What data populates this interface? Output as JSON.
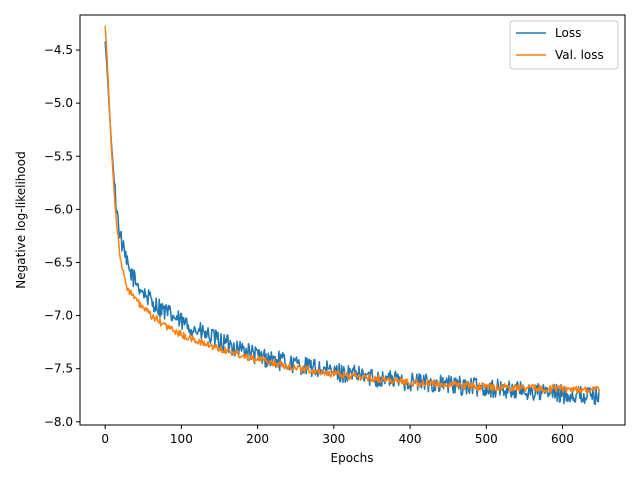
{
  "chart_data": {
    "type": "line",
    "title": "",
    "xlabel": "Epochs",
    "ylabel": "Negative log-likelihood",
    "xlim": [
      -33,
      682
    ],
    "ylim": [
      -8.03,
      -4.17
    ],
    "xticks": [
      0,
      100,
      200,
      300,
      400,
      500,
      600
    ],
    "xtick_labels": [
      "0",
      "100",
      "200",
      "300",
      "400",
      "500",
      "600"
    ],
    "yticks": [
      -8.0,
      -7.5,
      -7.0,
      -6.5,
      -6.0,
      -5.5,
      -5.0,
      -4.5
    ],
    "ytick_labels": [
      "−8.0",
      "−7.5",
      "−7.0",
      "−6.5",
      "−6.0",
      "−5.5",
      "−5.0",
      "−4.5"
    ],
    "grid": false,
    "legend": {
      "placement": "top-right"
    },
    "series": [
      {
        "name": "Loss",
        "color": "#1f77b4",
        "noise": 0.09,
        "x": [
          0,
          2,
          5,
          8,
          12,
          16,
          20,
          25,
          30,
          40,
          50,
          60,
          80,
          100,
          120,
          150,
          180,
          200,
          250,
          300,
          350,
          400,
          450,
          500,
          550,
          600,
          640,
          648
        ],
        "y": [
          -4.42,
          -4.62,
          -5.0,
          -5.35,
          -5.75,
          -6.05,
          -6.25,
          -6.42,
          -6.55,
          -6.68,
          -6.78,
          -6.86,
          -6.97,
          -7.06,
          -7.14,
          -7.24,
          -7.32,
          -7.38,
          -7.46,
          -7.53,
          -7.58,
          -7.62,
          -7.65,
          -7.68,
          -7.71,
          -7.74,
          -7.75,
          -7.75
        ]
      },
      {
        "name": "Val. loss",
        "color": "#ff7f0e",
        "noise": 0.035,
        "x": [
          0,
          2,
          5,
          8,
          12,
          16,
          20,
          25,
          30,
          40,
          50,
          60,
          80,
          100,
          120,
          150,
          180,
          200,
          250,
          300,
          350,
          400,
          450,
          500,
          550,
          600,
          640,
          648
        ],
        "y": [
          -4.27,
          -4.5,
          -4.95,
          -5.4,
          -5.85,
          -6.2,
          -6.45,
          -6.65,
          -6.75,
          -6.85,
          -6.93,
          -7.0,
          -7.1,
          -7.18,
          -7.24,
          -7.31,
          -7.37,
          -7.41,
          -7.49,
          -7.55,
          -7.59,
          -7.63,
          -7.65,
          -7.67,
          -7.68,
          -7.69,
          -7.7,
          -7.7
        ]
      }
    ]
  }
}
